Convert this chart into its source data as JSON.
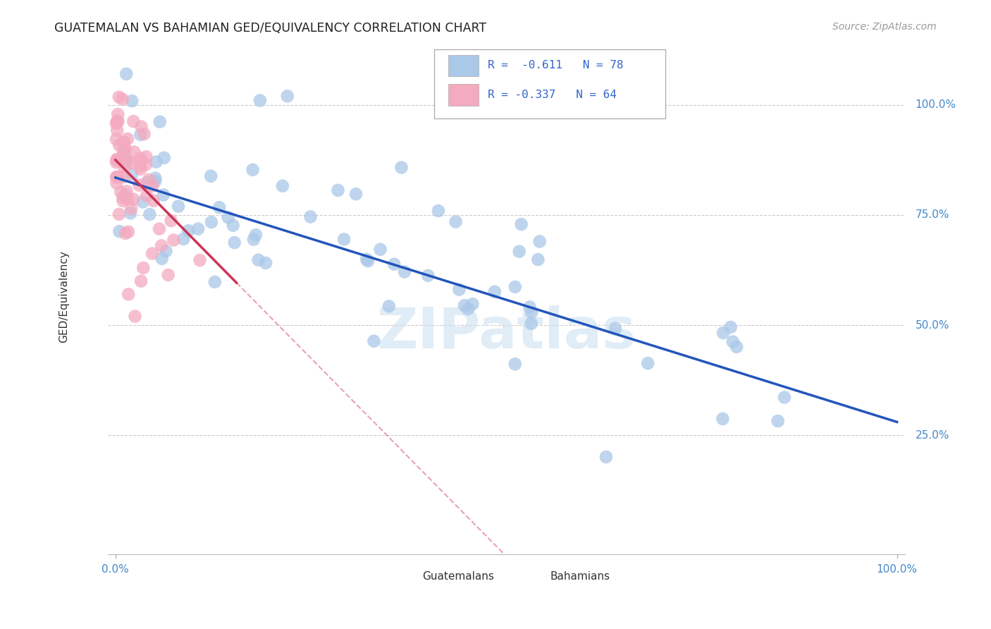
{
  "title": "GUATEMALAN VS BAHAMIAN GED/EQUIVALENCY CORRELATION CHART",
  "source": "Source: ZipAtlas.com",
  "ylabel": "GED/Equivalency",
  "y_ticks": [
    0.25,
    0.5,
    0.75,
    1.0
  ],
  "y_tick_labels": [
    "25.0%",
    "50.0%",
    "75.0%",
    "100.0%"
  ],
  "legend_line1": "R =  -0.611   N = 78",
  "legend_line2": "R = -0.337   N = 64",
  "legend_blue_label": "Guatemalans",
  "legend_pink_label": "Bahamians",
  "blue_dot_color": "#aac8e8",
  "pink_dot_color": "#f4aabf",
  "blue_line_color": "#2255bb",
  "pink_line_color": "#cc3355",
  "legend_text_color": "#3366cc",
  "axis_label_color": "#4488cc",
  "watermark_color": "#cce0f0",
  "grid_color": "#cccccc",
  "background_color": "#ffffff",
  "R_blue": -0.611,
  "N_blue": 78,
  "R_pink": -0.337,
  "N_pink": 64,
  "blue_intercept": 0.835,
  "blue_slope": -0.555,
  "pink_intercept": 0.875,
  "pink_slope": -1.8
}
